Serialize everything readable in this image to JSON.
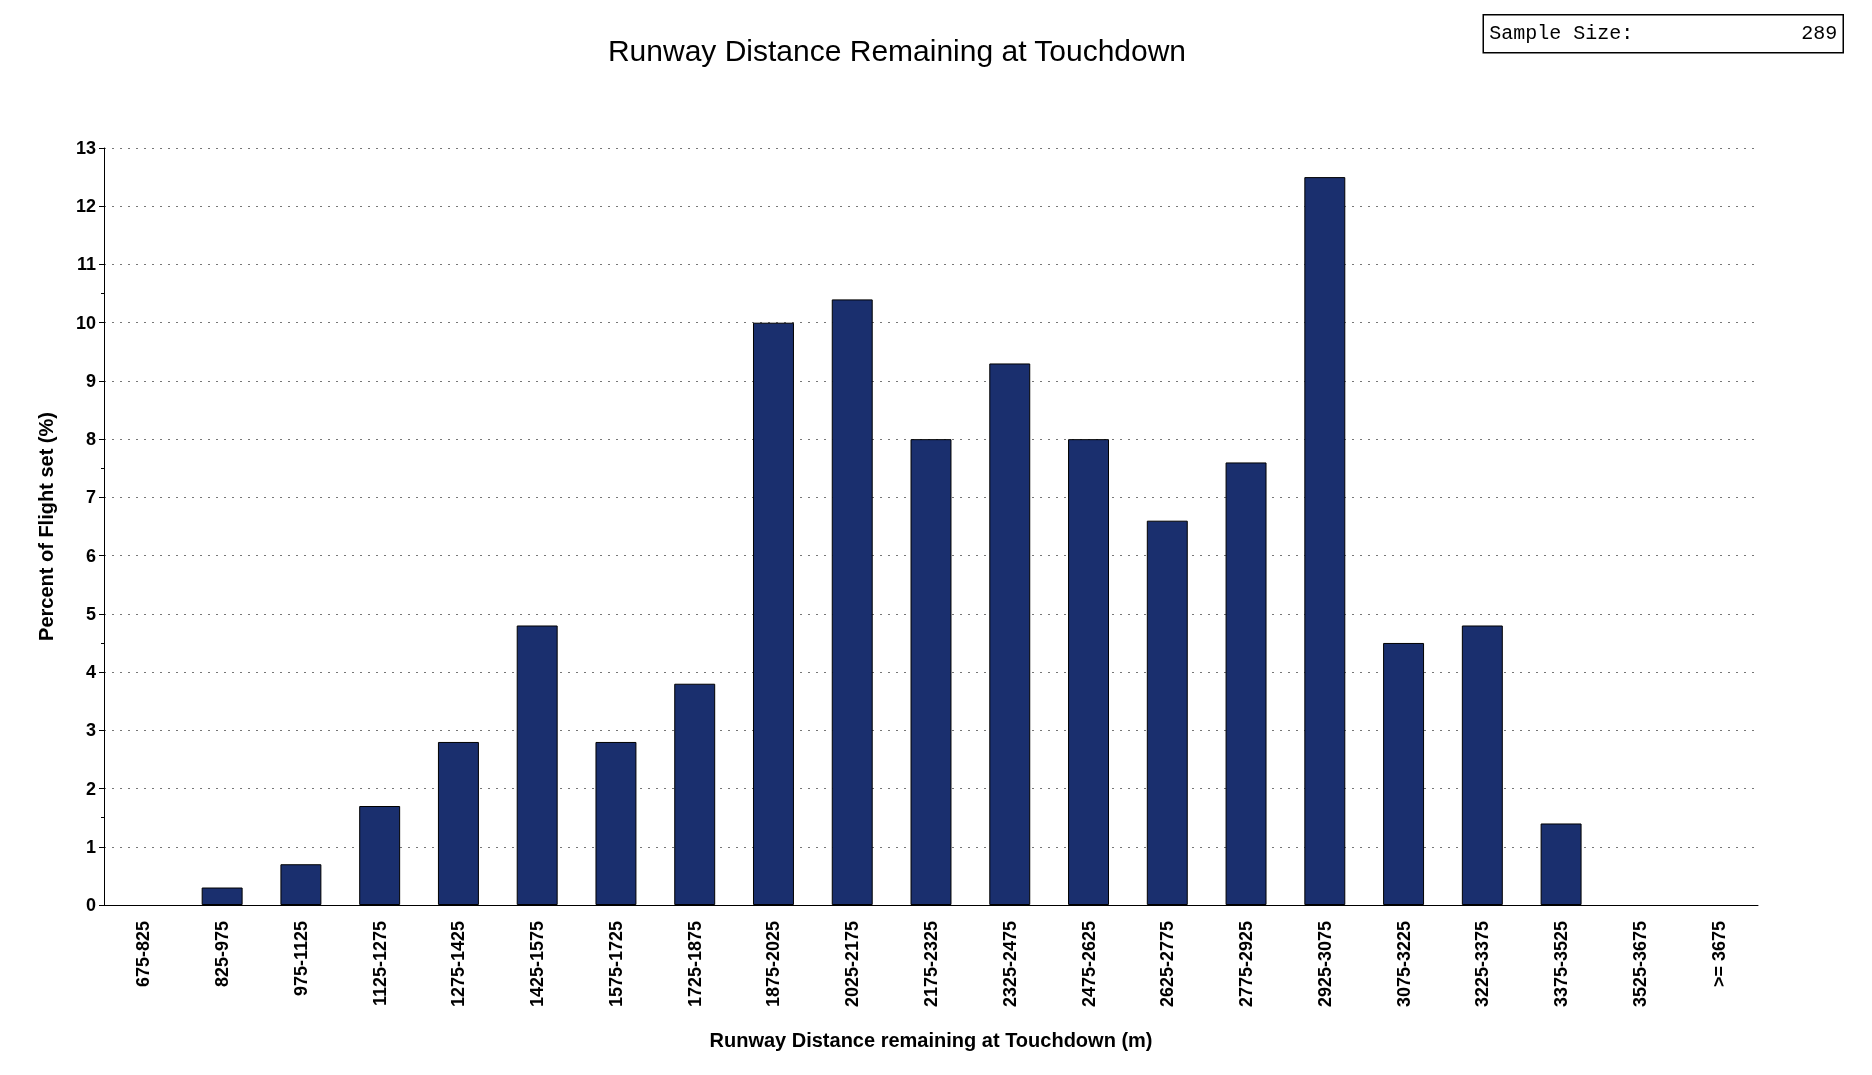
{
  "chart_data": {
    "type": "bar",
    "title": "Runway Distance Remaining at Touchdown",
    "xlabel": "Runway Distance remaining at Touchdown (m)",
    "ylabel": "Percent of Flight set (%)",
    "categories": [
      "675-825",
      "825-975",
      "975-1125",
      "1125-1275",
      "1275-1425",
      "1425-1575",
      "1575-1725",
      "1725-1875",
      "1875-2025",
      "2025-2175",
      "2175-2325",
      "2325-2475",
      "2475-2625",
      "2625-2775",
      "2775-2925",
      "2925-3075",
      "3075-3225",
      "3225-3375",
      "3375-3525",
      "3525-3675",
      ">= 3675"
    ],
    "values": [
      0,
      0.3,
      0.7,
      1.7,
      2.8,
      4.8,
      2.8,
      3.8,
      10.0,
      10.4,
      8.0,
      9.3,
      8.0,
      6.6,
      7.6,
      12.5,
      4.5,
      4.8,
      1.4,
      0,
      0
    ],
    "color": "#1a2f6e",
    "ylim": [
      0,
      13
    ],
    "yticks": [
      0,
      1,
      2,
      3,
      4,
      5,
      6,
      7,
      8,
      9,
      10,
      11,
      12,
      13
    ],
    "grid": "y",
    "annotations": [
      "Sample Size: 289"
    ]
  }
}
